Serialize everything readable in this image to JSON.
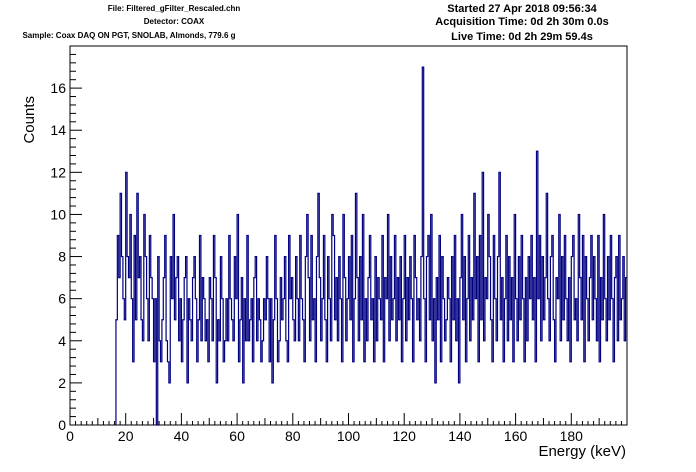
{
  "header": {
    "file": "File: Filtered_gFilter_Rescaled.chn",
    "detector": "Detector: COAX",
    "sample": "Sample: Coax DAQ ON PGT, SNOLAB, Almonds, 779.6 g",
    "started": "Started 27 Apr 2018 09:56:34",
    "acquisition": "Acquisition Time: 0d 2h 30m 0.0s",
    "live": "Live Time: 0d 2h 29m 59.4s"
  },
  "colors": {
    "line": "#000080",
    "axis": "#000000",
    "background": "#ffffff"
  },
  "chart_data": {
    "type": "line",
    "step": true,
    "xlabel": "Energy (keV)",
    "ylabel": "Counts",
    "xlim": [
      0,
      200
    ],
    "ylim": [
      0,
      18
    ],
    "xticks": [
      "0",
      "20",
      "40",
      "60",
      "80",
      "100",
      "120",
      "140",
      "160",
      "180"
    ],
    "yticks": [
      "0",
      "2",
      "4",
      "6",
      "8",
      "10",
      "12",
      "14",
      "16"
    ],
    "grid": false,
    "legend": "none",
    "x_start": 16.5,
    "bin_width": 0.5,
    "values": [
      5,
      9,
      7,
      11,
      8,
      6,
      5,
      12,
      8,
      7,
      10,
      6,
      3,
      9,
      5,
      11,
      7,
      8,
      5,
      4,
      10,
      8,
      6,
      4,
      9,
      7,
      6,
      3,
      6,
      0,
      8,
      4,
      3,
      5,
      7,
      9,
      4,
      3,
      2,
      8,
      6,
      10,
      5,
      7,
      8,
      4,
      6,
      3,
      5,
      7,
      8,
      2,
      6,
      5,
      4,
      7,
      8,
      6,
      3,
      5,
      9,
      4,
      7,
      6,
      4,
      5,
      3,
      7,
      6,
      4,
      9,
      7,
      2,
      5,
      4,
      8,
      6,
      3,
      4,
      6,
      4,
      9,
      6,
      5,
      4,
      8,
      6,
      10,
      3,
      5,
      7,
      2,
      6,
      4,
      9,
      4,
      5,
      6,
      3,
      7,
      8,
      4,
      6,
      5,
      3,
      4,
      6,
      5,
      8,
      6,
      3,
      6,
      2,
      5,
      9,
      6,
      3,
      4,
      7,
      5,
      6,
      8,
      4,
      3,
      9,
      6,
      7,
      5,
      4,
      8,
      6,
      4,
      9,
      6,
      5,
      3,
      8,
      10,
      7,
      4,
      9,
      5,
      6,
      3,
      8,
      11,
      7,
      4,
      6,
      9,
      5,
      3,
      8,
      6,
      4,
      10,
      9,
      5,
      7,
      4,
      8,
      6,
      3,
      10,
      7,
      4,
      6,
      8,
      5,
      9,
      3,
      6,
      11,
      7,
      4,
      8,
      5,
      10,
      3,
      6,
      4,
      7,
      9,
      5,
      6,
      3,
      8,
      4,
      7,
      6,
      5,
      9,
      3,
      7,
      6,
      10,
      4,
      8,
      5,
      6,
      9,
      4,
      7,
      5,
      8,
      3,
      6,
      9,
      4,
      7,
      5,
      8,
      6,
      3,
      9,
      7,
      5,
      6,
      4,
      8,
      17,
      6,
      3,
      8,
      9,
      5,
      10,
      4,
      6,
      2,
      7,
      5,
      9,
      3,
      8,
      6,
      4,
      5,
      7,
      6,
      3,
      8,
      5,
      9,
      4,
      6,
      2,
      7,
      10,
      5,
      8,
      3,
      6,
      9,
      4,
      7,
      5,
      11,
      6,
      8,
      3,
      9,
      5,
      12,
      4,
      7,
      6,
      10,
      8,
      5,
      3,
      9,
      6,
      4,
      8,
      12,
      5,
      7,
      3,
      6,
      9,
      4,
      8,
      5,
      7,
      3,
      10,
      6,
      4,
      8,
      5,
      9,
      6,
      3,
      7,
      4,
      8,
      6,
      9,
      5,
      7,
      3,
      13,
      6,
      9,
      4,
      8,
      5,
      7,
      11,
      6,
      4,
      8,
      9,
      5,
      3,
      7,
      6,
      10,
      4,
      8,
      5,
      9,
      6,
      4,
      7,
      3,
      8,
      9,
      5,
      6,
      4,
      10,
      7,
      5,
      9,
      3,
      8,
      6,
      4,
      7,
      9,
      5,
      8,
      6,
      4,
      9,
      3,
      7,
      5,
      10,
      6,
      4,
      8,
      5,
      9,
      6,
      3,
      7,
      8,
      4,
      9,
      5,
      6,
      8,
      4,
      7,
      10,
      5,
      6,
      3,
      8,
      9,
      4,
      7,
      6,
      5,
      8,
      10,
      4,
      6,
      9,
      5,
      7,
      3,
      8,
      4,
      9,
      6,
      7,
      10,
      5,
      8,
      4,
      6,
      9,
      3,
      7,
      5,
      8,
      6,
      10,
      4,
      7,
      9,
      5,
      6,
      8,
      3,
      7,
      9,
      4,
      6,
      8,
      5,
      10,
      7,
      4,
      9,
      6,
      5,
      8,
      3,
      7,
      6,
      9,
      4,
      8,
      5,
      10,
      6,
      3,
      7,
      9,
      4,
      8,
      6,
      5,
      7,
      9,
      4,
      6,
      8,
      5,
      9,
      3,
      7,
      6,
      10,
      4,
      8,
      5,
      9,
      6,
      3,
      7,
      8,
      4,
      10,
      5,
      6,
      9,
      4,
      7,
      5,
      8,
      3,
      6,
      9,
      5,
      7,
      4,
      8,
      6,
      10,
      5,
      3,
      7,
      6,
      8,
      4,
      9,
      5,
      7,
      6,
      10,
      2,
      9,
      6,
      4,
      8,
      5,
      10,
      3,
      7,
      6,
      9,
      4,
      8,
      10,
      5,
      7,
      9,
      6,
      4,
      8,
      5,
      6,
      3,
      7
    ]
  }
}
